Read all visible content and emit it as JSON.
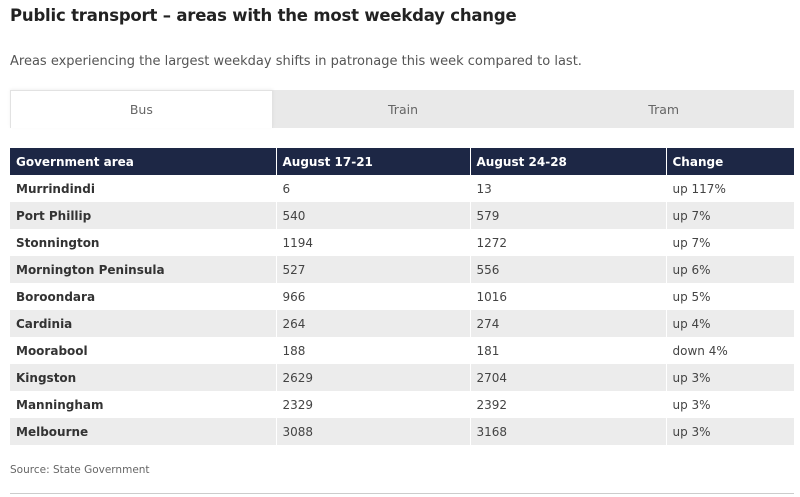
{
  "header": {
    "title": "Public transport – areas with the most weekday change",
    "subtitle": "Areas experiencing the largest weekday shifts in patronage this week compared to last."
  },
  "tabs": [
    {
      "label": "Bus",
      "active": true
    },
    {
      "label": "Train",
      "active": false
    },
    {
      "label": "Tram",
      "active": false
    }
  ],
  "table": {
    "columns": [
      "Government area",
      "August 17-21",
      "August 24-28",
      "Change"
    ],
    "rows": [
      [
        "Murrindindi",
        "6",
        "13",
        "up 117%"
      ],
      [
        "Port Phillip",
        "540",
        "579",
        "up 7%"
      ],
      [
        "Stonnington",
        "1194",
        "1272",
        "up 7%"
      ],
      [
        "Mornington Peninsula",
        "527",
        "556",
        "up 6%"
      ],
      [
        "Boroondara",
        "966",
        "1016",
        "up 5%"
      ],
      [
        "Cardinia",
        "264",
        "274",
        "up 4%"
      ],
      [
        "Moorabool",
        "188",
        "181",
        "down 4%"
      ],
      [
        "Kingston",
        "2629",
        "2704",
        "up 3%"
      ],
      [
        "Manningham",
        "2329",
        "2392",
        "up 3%"
      ],
      [
        "Melbourne",
        "3088",
        "3168",
        "up 3%"
      ]
    ]
  },
  "footer": {
    "source": "Source: State Government"
  },
  "colors": {
    "header_bg": "#1d2745",
    "stripe": "#ececec",
    "tab_bar": "#e9e9e9"
  }
}
